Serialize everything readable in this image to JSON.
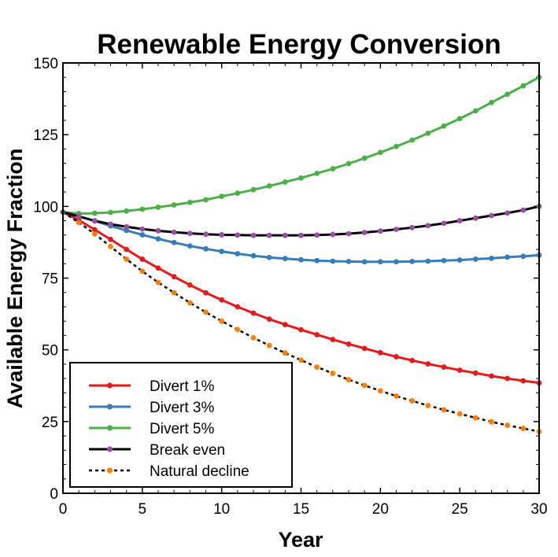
{
  "chart_data": {
    "type": "line",
    "title": "Renewable Energy Conversion",
    "xlabel": "Year",
    "ylabel": "Available Energy Fraction",
    "xlim": [
      0,
      30
    ],
    "ylim": [
      0,
      150
    ],
    "xticks": [
      0,
      5,
      10,
      15,
      20,
      25,
      30
    ],
    "yticks": [
      0,
      25,
      50,
      75,
      100,
      125,
      150
    ],
    "grid": false,
    "legend": "bottom-left",
    "x": [
      0,
      1,
      2,
      3,
      4,
      5,
      6,
      7,
      8,
      9,
      10,
      11,
      12,
      13,
      14,
      15,
      16,
      17,
      18,
      19,
      20,
      21,
      22,
      23,
      24,
      25,
      26,
      27,
      28,
      29,
      30
    ],
    "series": [
      {
        "name": "Divert 1%",
        "color": "#e41a1c",
        "style": "solid",
        "marker_color": "#e41a1c",
        "values": [
          98.0,
          95.2,
          91.9,
          88.5,
          85.0,
          81.6,
          78.5,
          75.5,
          72.6,
          69.9,
          67.4,
          65.0,
          62.8,
          60.7,
          58.8,
          57.0,
          55.3,
          53.6,
          52.0,
          50.5,
          49.0,
          47.6,
          46.3,
          45.1,
          44.0,
          42.9,
          41.9,
          40.9,
          40.0,
          39.2,
          38.5
        ]
      },
      {
        "name": "Divert 3%",
        "color": "#377eb8",
        "style": "solid",
        "marker_color": "#377eb8",
        "values": [
          98.0,
          96.5,
          94.9,
          93.2,
          91.6,
          90.1,
          88.7,
          87.4,
          86.2,
          85.2,
          84.3,
          83.5,
          82.8,
          82.2,
          81.8,
          81.4,
          81.1,
          80.9,
          80.8,
          80.7,
          80.7,
          80.7,
          80.8,
          80.9,
          81.1,
          81.3,
          81.6,
          81.9,
          82.3,
          82.6,
          83.0
        ]
      },
      {
        "name": "Divert 5%",
        "color": "#4daf4a",
        "style": "solid",
        "marker_color": "#4daf4a",
        "values": [
          98.0,
          97.5,
          97.6,
          97.9,
          98.4,
          99.0,
          99.7,
          100.5,
          101.4,
          102.3,
          103.5,
          104.6,
          105.8,
          107.1,
          108.5,
          109.9,
          111.5,
          113.1,
          114.9,
          116.8,
          118.8,
          120.9,
          123.1,
          125.5,
          128.0,
          130.6,
          133.3,
          136.2,
          139.1,
          142.0,
          145.0
        ]
      },
      {
        "name": "Break even",
        "color": "#000000",
        "style": "solid",
        "marker_color": "#984ea3",
        "values": [
          98.0,
          96.5,
          95.0,
          93.8,
          92.9,
          92.1,
          91.5,
          91.0,
          90.6,
          90.3,
          90.1,
          90.0,
          89.9,
          89.9,
          89.9,
          89.9,
          90.0,
          90.2,
          90.5,
          90.9,
          91.4,
          92.0,
          92.6,
          93.3,
          94.1,
          95.0,
          95.9,
          96.8,
          97.7,
          98.7,
          100.0
        ]
      },
      {
        "name": "Natural decline",
        "color": "#000000",
        "style": "dotted",
        "marker_color": "#ff7f00",
        "values": [
          98.0,
          94.4,
          90.4,
          86.0,
          81.6,
          77.4,
          73.5,
          69.9,
          66.4,
          63.1,
          60.0,
          57.1,
          54.2,
          51.5,
          48.9,
          46.4,
          44.0,
          41.8,
          39.6,
          37.6,
          35.7,
          33.9,
          32.2,
          30.6,
          29.1,
          27.7,
          26.3,
          24.9,
          23.7,
          22.6,
          21.5
        ]
      }
    ]
  }
}
